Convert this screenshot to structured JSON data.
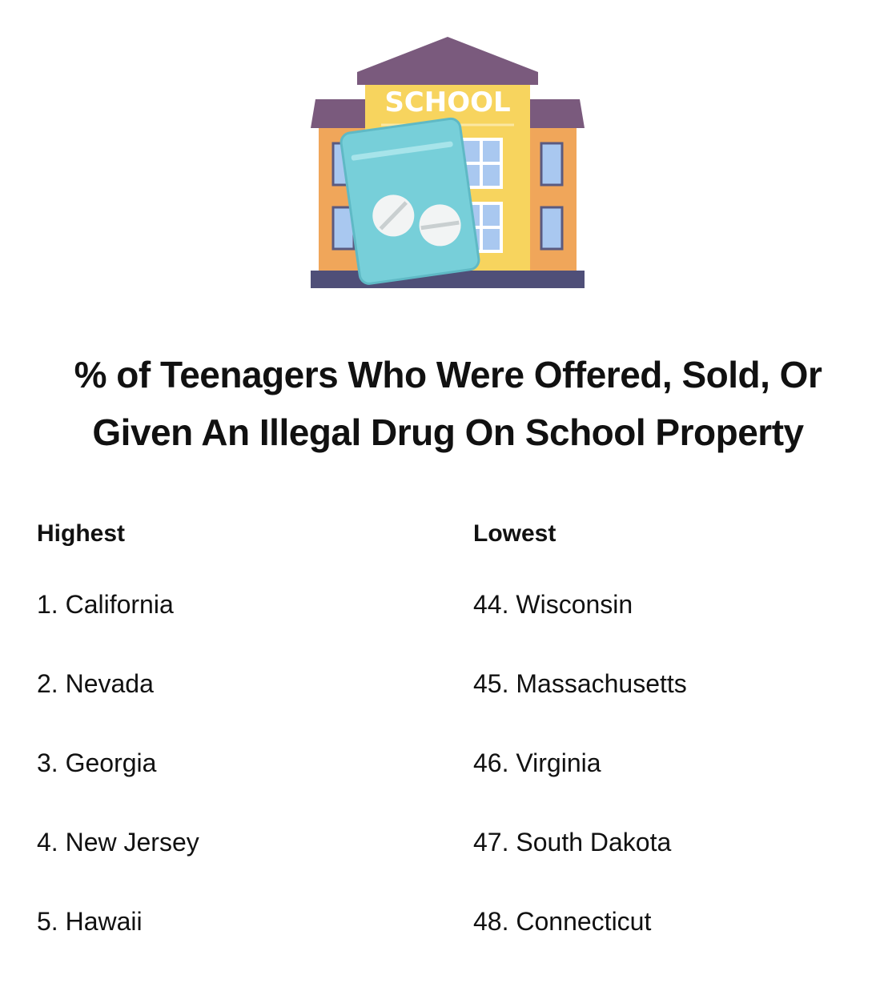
{
  "illustration": {
    "sign_text": "SCHOOL",
    "colors": {
      "roof": "#7a5a7d",
      "main_wall": "#f7d45e",
      "side_wall": "#f0a65a",
      "window": "#a9c8f0",
      "base": "#4f4f78",
      "pill_bag": "#77cfd9",
      "pill": "#f2f4f4"
    }
  },
  "title": {
    "line1": "% of Teenagers Who Were Offered, Sold, Or",
    "line2": "Given An Illegal Drug On School Property"
  },
  "highest": {
    "heading": "Highest",
    "items": [
      "1. California",
      "2. Nevada",
      "3. Georgia",
      "4. New Jersey",
      "5. Hawaii"
    ]
  },
  "lowest": {
    "heading": "Lowest",
    "items": [
      "44. Wisconsin",
      "45. Massachusetts",
      "46. Virginia",
      "47. South Dakota",
      "48. Connecticut"
    ]
  }
}
